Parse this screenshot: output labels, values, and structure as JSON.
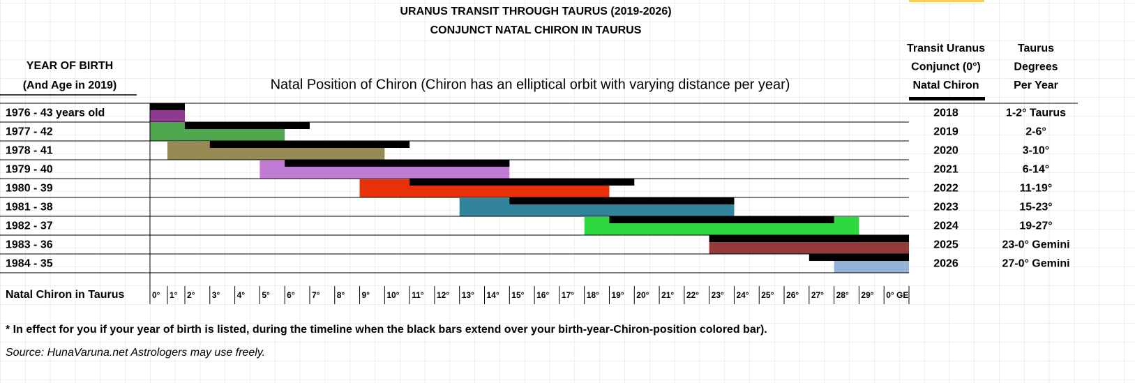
{
  "title": "URANUS TRANSIT THROUGH TAURUS (2019-2026)",
  "subtitle": "CONJUNCT NATAL CHIRON IN TAURUS",
  "chart_data": {
    "type": "gantt",
    "row_header": [
      "YEAR OF BIRTH",
      "(And Age in 2019)"
    ],
    "plot_title": "Natal Position of Chiron (Chiron has an elliptical orbit with varying distance per year)",
    "axis_label": "Natal Chiron in Taurus",
    "categories": [
      "0°",
      "1°",
      "2°",
      "3°",
      "4°",
      "5°",
      "6°",
      "7°",
      "8°",
      "9°",
      "10°",
      "11°",
      "12°",
      "13°",
      "14°",
      "15°",
      "16°",
      "17°",
      "18°",
      "19°",
      "20°",
      "21°",
      "22°",
      "23°",
      "24°",
      "25°",
      "26°",
      "27°",
      "28°",
      "29°",
      "0° GE"
    ],
    "transit_color": "#000000",
    "rows": [
      {
        "label": "1976 - 43 years old",
        "color": "#8e3a8e",
        "start": 0,
        "end": 2,
        "transit_start": 0,
        "transit_end": 2
      },
      {
        "label": "1977 - 42",
        "color": "#4ea64e",
        "start": 0,
        "end": 6,
        "transit_start": 2,
        "transit_end": 7
      },
      {
        "label": "1978 - 41",
        "color": "#968a55",
        "start": 1,
        "end": 10,
        "transit_start": 3,
        "transit_end": 11
      },
      {
        "label": "1979 - 40",
        "color": "#c27bd3",
        "start": 5,
        "end": 15,
        "transit_start": 6,
        "transit_end": 15
      },
      {
        "label": "1980 - 39",
        "color": "#e8300a",
        "start": 9,
        "end": 19,
        "transit_start": 11,
        "transit_end": 20
      },
      {
        "label": "1981 - 38",
        "color": "#31849b",
        "start": 13,
        "end": 24,
        "transit_start": 15,
        "transit_end": 24
      },
      {
        "label": "1982 - 37",
        "color": "#2ed83f",
        "start": 18,
        "end": 29,
        "transit_start": 19,
        "transit_end": 28
      },
      {
        "label": "1983 - 36",
        "color": "#953a3a",
        "start": 23,
        "end": 31,
        "transit_start": 23,
        "transit_end": 31
      },
      {
        "label": "1984 - 35",
        "color": "#95b3d7",
        "start": 28,
        "end": 31,
        "transit_start": 27,
        "transit_end": 31
      }
    ]
  },
  "table": {
    "headers": [
      [
        "Transit Uranus",
        "Conjunct (0°)",
        "Natal Chiron"
      ],
      [
        "Taurus",
        "Degrees",
        "Per Year"
      ]
    ],
    "rows": [
      [
        "2018",
        "1-2° Taurus"
      ],
      [
        "2019",
        "2-6°"
      ],
      [
        "2020",
        "3-10°"
      ],
      [
        "2021",
        "6-14°"
      ],
      [
        "2022",
        "11-19°"
      ],
      [
        "2023",
        "15-23°"
      ],
      [
        "2024",
        "19-27°"
      ],
      [
        "2025",
        "23-0° Gemini"
      ],
      [
        "2026",
        "27-0° Gemini"
      ]
    ]
  },
  "footnote": "* In effect for you if your year of birth is listed, during the timeline when the black bars extend over your birth-year-Chiron-position colored bar).",
  "source": "Source:  HunaVaruna.net  Astrologers may use freely."
}
